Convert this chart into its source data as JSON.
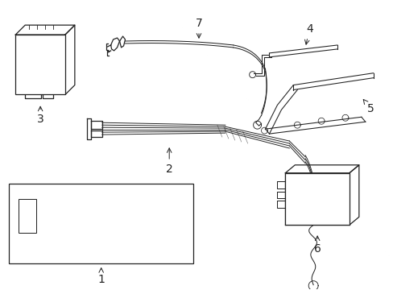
{
  "bg_color": "#ffffff",
  "line_color": "#222222",
  "lw": 0.9,
  "font_size": 10,
  "figsize": [
    4.89,
    3.6
  ],
  "dpi": 100
}
